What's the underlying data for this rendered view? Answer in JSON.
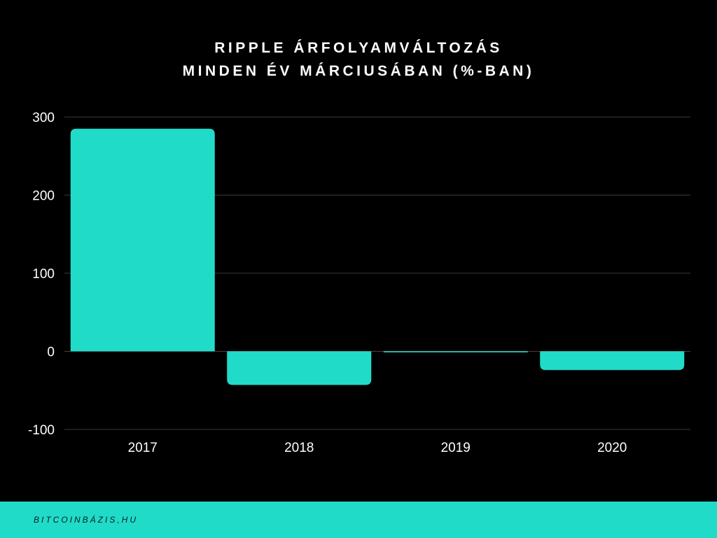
{
  "chart_data": {
    "type": "bar",
    "title": [
      "RIPPLE ÁRFOLYAMVÁLTOZÁS",
      "MINDEN ÉV MÁRCIUSÁBAN (%-BAN)"
    ],
    "categories": [
      "2017",
      "2018",
      "2019",
      "2020"
    ],
    "values": [
      285,
      -43,
      -1,
      -24
    ],
    "yticks": [
      300,
      200,
      100,
      0,
      -100
    ],
    "ylim": [
      -100,
      300
    ],
    "xlabel": "",
    "ylabel": "",
    "grid": true,
    "legend": "none",
    "bar_color": "#21dbc9",
    "grid_color": "#3a3a3a",
    "background": "#000000"
  },
  "footer": {
    "label": "BITCOINBÁZIS,HU",
    "color": "#21dbc9"
  }
}
